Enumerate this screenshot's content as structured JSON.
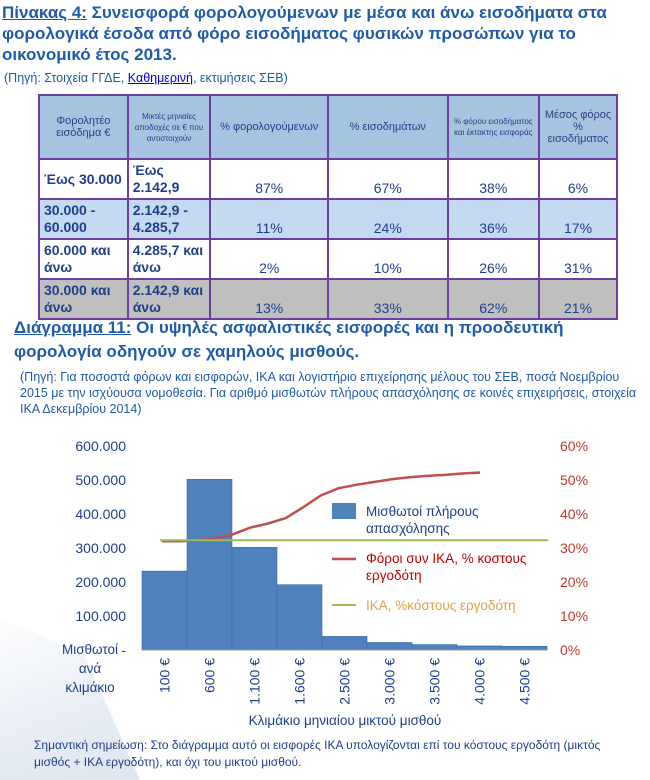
{
  "table_title": {
    "prefix": "Πίνακας 4:",
    "text": " Συνεισφορά φορολογούμενων με μέσα και άνω εισοδήματα στα φορολογικά έσοδα από φόρο εισοδήματος φυσικών προσώπων για το οικονομικό έτος 2013."
  },
  "table_source": {
    "before": "(Πηγή: Στοιχεία ΓΓΔΕ, ",
    "link": "Καθημερινή",
    "after": ", εκτιμήσεις ΣΕΒ)"
  },
  "table": {
    "headers": [
      "Φορολητέο εισόδημα €",
      "Μικτές μηνιαίες αποδοχές σε € που αντιστοιχούν",
      "% φορολογούμενων",
      "% εισοδημάτων",
      "% φόρου εισοδήματος και έκτακτης εισφοράς",
      "Μέσος φόρος % εισοδήματος"
    ],
    "rows": [
      {
        "income": "Έως 30.000",
        "gross": "Έως 2.142,9",
        "taxpayers": "87%",
        "incomes": "67%",
        "tax": "38%",
        "avg": "6%"
      },
      {
        "income": "30.000 - 60.000",
        "gross": "2.142,9 - 4.285,7",
        "taxpayers": "11%",
        "incomes": "24%",
        "tax": "36%",
        "avg": "17%"
      },
      {
        "income": "60.000 και άνω",
        "gross": "4.285,7 και άνω",
        "taxpayers": "2%",
        "incomes": "10%",
        "tax": "26%",
        "avg": "31%"
      },
      {
        "income": "30.000 και άνω",
        "gross": "2.142,9 και άνω",
        "taxpayers": "13%",
        "incomes": "33%",
        "tax": "62%",
        "avg": "21%"
      }
    ]
  },
  "diagram_title": {
    "prefix": "Διάγραμμα 11:",
    "text": " Οι υψηλές ασφαλιστικές εισφορές και η προοδευτική φορολογία οδηγούν σε χαμηλούς μισθούς."
  },
  "diagram_source": "(Πηγή: Για ποσοστά φόρων και εισφορών, ΙΚΑ και λογιστήριο επιχείρησης μέλους του ΣΕΒ, ποσά Νοεμβρίου 2015 με την ισχύουσα νομοθεσία. Για αριθμό μισθωτών πλήρους απασχόλησης σε κοινές επιχειρήσεις, στοιχεία ΙΚΑ Δεκεμβρίου 2014)",
  "chart_data": {
    "type": "bar",
    "categories": [
      "100 €",
      "600 €",
      "1.100 €",
      "1.600 €",
      "2.500 €",
      "3.000 €",
      "3.500 €",
      "4.000 €",
      "4.500 €"
    ],
    "x_ticks": [
      "100 €",
      "600 €",
      "1.100 €",
      "1.600 €",
      "2.500 €",
      "3.000 €",
      "3.500 €",
      "4.000 €",
      "4.500 €"
    ],
    "xlabel": "Κλιμάκιο μηνιαίου μικτού μισθού",
    "ylabel_left": "Μισθωτοί ανά κλιμάκιο",
    "y_left_ticks": [
      "-",
      "100.000",
      "200.000",
      "300.000",
      "400.000",
      "500.000",
      "600.000"
    ],
    "y_left_range": [
      0,
      600000
    ],
    "y_right_ticks": [
      "0%",
      "10%",
      "20%",
      "30%",
      "40%",
      "50%",
      "60%"
    ],
    "y_right_range": [
      0,
      60
    ],
    "series": [
      {
        "name": "Μισθωτοί πλήρους απασχόλησης",
        "type": "bar",
        "axis": "left",
        "color": "#4f81bd",
        "values": [
          232000,
          502000,
          302000,
          192000,
          40000,
          22000,
          16000,
          12000,
          11000
        ]
      },
      {
        "name": "Φόροι συν ΙΚΑ, % κοστους εργοδότη",
        "type": "line",
        "axis": "right",
        "color": "#c0504d",
        "x": [
          0,
          0.5,
          1,
          1.5,
          2,
          2.5,
          3,
          3.5,
          4,
          4.5,
          5,
          5.5,
          6,
          6.5,
          7,
          7.5,
          8,
          8.5,
          9
        ],
        "values": [
          32,
          32,
          32.3,
          32.8,
          34,
          36,
          37.2,
          38.8,
          42,
          45.5,
          47.6,
          48.6,
          49.4,
          50.2,
          50.8,
          51.2,
          51.5,
          51.9,
          52.2
        ]
      },
      {
        "name": "ΙΚΑ, %κόστους εργοδότη",
        "type": "line",
        "axis": "right",
        "color": "#9bbb59",
        "x": [
          0,
          9
        ],
        "values": [
          32.3,
          32.3
        ]
      }
    ],
    "legend_placement": "right-inside"
  },
  "note": "Σημαντική σημείωση: Στο διάγραμμα αυτό οι εισφορές ΙΚΑ υπολογίζονται επί του κόστους εργοδότη (μικτός μισθός + ΙΚΑ εργοδότη), και όχι του μικτού μισθού."
}
